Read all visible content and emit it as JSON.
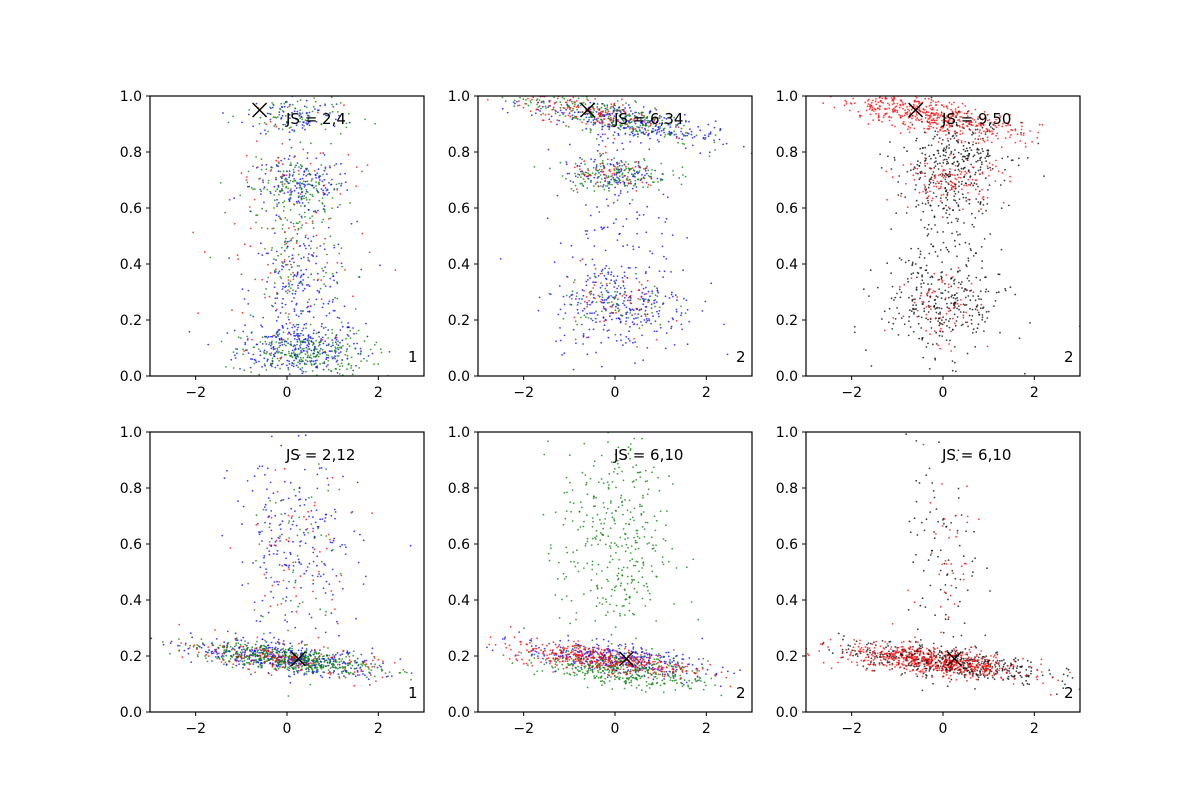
{
  "figure": {
    "background": "#ffffff",
    "series_colors": {
      "blue": "#0000ff",
      "green": "#008000",
      "red": "#ff0000",
      "black": "#000000"
    }
  },
  "chart_data": [
    {
      "type": "scatter",
      "annotation": "JS = 2,4",
      "corner_label": "1",
      "xlim": [
        -3,
        3
      ],
      "ylim": [
        0,
        1
      ],
      "xticks": [
        "−2",
        "0",
        "2"
      ],
      "yticks": [
        "0.0",
        "0.2",
        "0.4",
        "0.6",
        "0.8",
        "1.0"
      ],
      "marker_x": {
        "x": -0.6,
        "y": 0.95
      },
      "series": [
        {
          "color": "blue",
          "clusters": [
            {
              "cx": 0.3,
              "cy": 0.1,
              "sx": 0.7,
              "sy": 0.05,
              "tilt": 0,
              "n": 260
            },
            {
              "cx": 0.3,
              "cy": 0.68,
              "sx": 0.55,
              "sy": 0.05,
              "tilt": 0,
              "n": 160
            },
            {
              "cx": 0.3,
              "cy": 0.3,
              "sx": 0.55,
              "sy": 0.12,
              "tilt": 0,
              "n": 200
            },
            {
              "cx": 0.2,
              "cy": 0.93,
              "sx": 0.55,
              "sy": 0.04,
              "tilt": 0,
              "n": 80
            }
          ]
        },
        {
          "color": "green",
          "clusters": [
            {
              "cx": 0.4,
              "cy": 0.08,
              "sx": 0.7,
              "sy": 0.04,
              "tilt": 0,
              "n": 230
            },
            {
              "cx": 0.2,
              "cy": 0.67,
              "sx": 0.55,
              "sy": 0.05,
              "tilt": 0,
              "n": 140
            },
            {
              "cx": 0.2,
              "cy": 0.4,
              "sx": 0.5,
              "sy": 0.15,
              "tilt": 0,
              "n": 130
            },
            {
              "cx": 0.3,
              "cy": 0.93,
              "sx": 0.6,
              "sy": 0.04,
              "tilt": 0,
              "n": 80
            }
          ]
        },
        {
          "color": "red",
          "clusters": [
            {
              "cx": 0.0,
              "cy": 0.5,
              "sx": 0.8,
              "sy": 0.3,
              "tilt": 0,
              "n": 130
            }
          ]
        }
      ]
    },
    {
      "type": "scatter",
      "annotation": "JS = 6,34",
      "corner_label": "2",
      "xlim": [
        -3,
        3
      ],
      "ylim": [
        0,
        1
      ],
      "xticks": [
        "−2",
        "0",
        "2"
      ],
      "yticks": [
        "0.0",
        "0.2",
        "0.4",
        "0.6",
        "0.8",
        "1.0"
      ],
      "marker_x": {
        "x": -0.6,
        "y": 0.95
      },
      "series": [
        {
          "color": "blue",
          "clusters": [
            {
              "cx": 0.2,
              "cy": 0.91,
              "sx": 1.0,
              "sy": 0.03,
              "tilt": -0.03,
              "n": 280
            },
            {
              "cx": 0.2,
              "cy": 0.25,
              "sx": 0.8,
              "sy": 0.08,
              "tilt": 0,
              "n": 250
            },
            {
              "cx": 0.0,
              "cy": 0.5,
              "sx": 0.6,
              "sy": 0.2,
              "tilt": 0,
              "n": 150
            },
            {
              "cx": 0.0,
              "cy": 0.72,
              "sx": 0.5,
              "sy": 0.03,
              "tilt": 0,
              "n": 90
            }
          ]
        },
        {
          "color": "green",
          "clusters": [
            {
              "cx": -0.2,
              "cy": 0.93,
              "sx": 1.0,
              "sy": 0.03,
              "tilt": -0.03,
              "n": 260
            },
            {
              "cx": 0.0,
              "cy": 0.72,
              "sx": 0.6,
              "sy": 0.03,
              "tilt": 0,
              "n": 160
            },
            {
              "cx": 0.0,
              "cy": 0.26,
              "sx": 0.6,
              "sy": 0.06,
              "tilt": 0,
              "n": 70
            }
          ]
        },
        {
          "color": "red",
          "clusters": [
            {
              "cx": -0.5,
              "cy": 0.94,
              "sx": 0.8,
              "sy": 0.025,
              "tilt": -0.03,
              "n": 160
            },
            {
              "cx": 0.0,
              "cy": 0.72,
              "sx": 0.5,
              "sy": 0.03,
              "tilt": 0,
              "n": 60
            },
            {
              "cx": 0.0,
              "cy": 0.25,
              "sx": 0.6,
              "sy": 0.08,
              "tilt": 0,
              "n": 60
            }
          ]
        }
      ]
    },
    {
      "type": "scatter",
      "annotation": "JS = 9,50",
      "corner_label": "2",
      "xlim": [
        -3,
        3
      ],
      "ylim": [
        0,
        1
      ],
      "xticks": [
        "−2",
        "0",
        "2"
      ],
      "yticks": [
        "0.0",
        "0.2",
        "0.4",
        "0.6",
        "0.8",
        "1.0"
      ],
      "marker_x": {
        "x": -0.6,
        "y": 0.95
      },
      "series": [
        {
          "color": "black",
          "clusters": [
            {
              "cx": 0.3,
              "cy": 0.8,
              "sx": 0.6,
              "sy": 0.05,
              "tilt": 0,
              "n": 200
            },
            {
              "cx": 0.0,
              "cy": 0.25,
              "sx": 0.7,
              "sy": 0.08,
              "tilt": 0,
              "n": 260
            },
            {
              "cx": 0.0,
              "cy": 0.5,
              "sx": 0.5,
              "sy": 0.2,
              "tilt": 0,
              "n": 200
            },
            {
              "cx": 0.3,
              "cy": 0.68,
              "sx": 0.5,
              "sy": 0.05,
              "tilt": 0,
              "n": 80
            }
          ]
        },
        {
          "color": "red",
          "clusters": [
            {
              "cx": -0.3,
              "cy": 0.93,
              "sx": 1.0,
              "sy": 0.03,
              "tilt": -0.03,
              "n": 500
            },
            {
              "cx": 0.2,
              "cy": 0.7,
              "sx": 0.6,
              "sy": 0.04,
              "tilt": 0,
              "n": 130
            },
            {
              "cx": 0.0,
              "cy": 0.25,
              "sx": 0.5,
              "sy": 0.08,
              "tilt": 0,
              "n": 70
            }
          ]
        }
      ]
    },
    {
      "type": "scatter",
      "annotation": "JS = 2,12",
      "corner_label": "1",
      "xlim": [
        -3,
        3
      ],
      "ylim": [
        0,
        1
      ],
      "xticks": [
        "−2",
        "0",
        "2"
      ],
      "yticks": [
        "0.0",
        "0.2",
        "0.4",
        "0.6",
        "0.8",
        "1.0"
      ],
      "marker_x": {
        "x": 0.25,
        "y": 0.19
      },
      "series": [
        {
          "color": "blue",
          "clusters": [
            {
              "cx": 0.0,
              "cy": 0.19,
              "sx": 1.0,
              "sy": 0.025,
              "tilt": -0.018,
              "n": 420
            },
            {
              "cx": 0.2,
              "cy": 0.58,
              "sx": 0.7,
              "sy": 0.17,
              "tilt": 0,
              "n": 220
            }
          ]
        },
        {
          "color": "green",
          "clusters": [
            {
              "cx": 0.0,
              "cy": 0.19,
              "sx": 1.0,
              "sy": 0.022,
              "tilt": -0.018,
              "n": 520
            },
            {
              "cx": 0.2,
              "cy": 0.55,
              "sx": 0.5,
              "sy": 0.18,
              "tilt": 0,
              "n": 60
            }
          ]
        },
        {
          "color": "red",
          "clusters": [
            {
              "cx": 0.0,
              "cy": 0.19,
              "sx": 1.0,
              "sy": 0.025,
              "tilt": -0.018,
              "n": 160
            },
            {
              "cx": 0.2,
              "cy": 0.55,
              "sx": 0.6,
              "sy": 0.18,
              "tilt": 0,
              "n": 60
            }
          ]
        }
      ]
    },
    {
      "type": "scatter",
      "annotation": "JS = 6,10",
      "corner_label": "2",
      "xlim": [
        -3,
        3
      ],
      "ylim": [
        0,
        1
      ],
      "xticks": [
        "−2",
        "0",
        "2"
      ],
      "yticks": [
        "0.0",
        "0.2",
        "0.4",
        "0.6",
        "0.8",
        "1.0"
      ],
      "marker_x": {
        "x": 0.25,
        "y": 0.19
      },
      "series": [
        {
          "color": "blue",
          "clusters": [
            {
              "cx": 0.0,
              "cy": 0.19,
              "sx": 1.0,
              "sy": 0.025,
              "tilt": -0.018,
              "n": 360
            }
          ]
        },
        {
          "color": "green",
          "clusters": [
            {
              "cx": 0.2,
              "cy": 0.15,
              "sx": 0.9,
              "sy": 0.03,
              "tilt": -0.018,
              "n": 380
            },
            {
              "cx": 0.0,
              "cy": 0.6,
              "sx": 0.6,
              "sy": 0.2,
              "tilt": 0,
              "n": 380
            }
          ]
        },
        {
          "color": "red",
          "clusters": [
            {
              "cx": -0.3,
              "cy": 0.19,
              "sx": 1.0,
              "sy": 0.022,
              "tilt": -0.018,
              "n": 420
            }
          ]
        }
      ]
    },
    {
      "type": "scatter",
      "annotation": "JS = 6,10",
      "corner_label": "2",
      "xlim": [
        -3,
        3
      ],
      "ylim": [
        0,
        1
      ],
      "xticks": [
        "−2",
        "0",
        "2"
      ],
      "yticks": [
        "0.0",
        "0.2",
        "0.4",
        "0.6",
        "0.8",
        "1.0"
      ],
      "marker_x": {
        "x": 0.25,
        "y": 0.19
      },
      "series": [
        {
          "color": "black",
          "clusters": [
            {
              "cx": 0.0,
              "cy": 0.18,
              "sx": 1.1,
              "sy": 0.028,
              "tilt": -0.018,
              "n": 500
            },
            {
              "cx": 0.0,
              "cy": 0.55,
              "sx": 0.4,
              "sy": 0.2,
              "tilt": 0,
              "n": 90
            }
          ]
        },
        {
          "color": "red",
          "clusters": [
            {
              "cx": -0.2,
              "cy": 0.18,
              "sx": 1.0,
              "sy": 0.024,
              "tilt": -0.018,
              "n": 620
            },
            {
              "cx": 0.0,
              "cy": 0.55,
              "sx": 0.4,
              "sy": 0.2,
              "tilt": 0,
              "n": 40
            }
          ]
        }
      ]
    }
  ]
}
